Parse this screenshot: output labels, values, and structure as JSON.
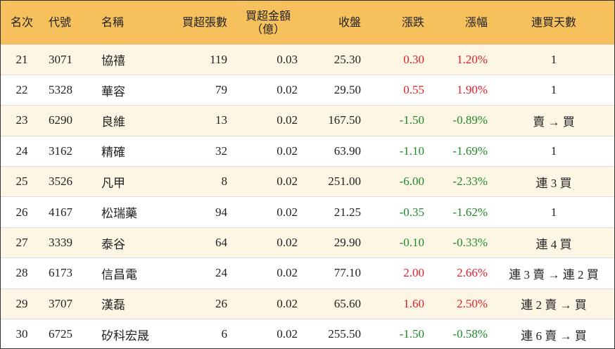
{
  "table": {
    "header": [
      "名次",
      "代號",
      "名稱",
      "買超張數",
      [
        "買超金額",
        "（億）"
      ],
      "收盤",
      "漲跌",
      "漲幅",
      "連買天數"
    ],
    "rows": [
      [
        "21",
        "3071",
        "協禧",
        "119",
        "0.03",
        "25.30",
        "0.30",
        "1.20%",
        "1"
      ],
      [
        "22",
        "5328",
        "華容",
        "79",
        "0.02",
        "29.50",
        "0.55",
        "1.90%",
        "1"
      ],
      [
        "23",
        "6290",
        "良維",
        "13",
        "0.02",
        "167.50",
        "-1.50",
        "-0.89%",
        "賣 → 買"
      ],
      [
        "24",
        "3162",
        "精確",
        "32",
        "0.02",
        "63.90",
        "-1.10",
        "-1.69%",
        "1"
      ],
      [
        "25",
        "3526",
        "凡甲",
        "8",
        "0.02",
        "251.00",
        "-6.00",
        "-2.33%",
        "連 3 買"
      ],
      [
        "26",
        "4167",
        "松瑞藥",
        "94",
        "0.02",
        "21.25",
        "-0.35",
        "-1.62%",
        "1"
      ],
      [
        "27",
        "3339",
        "泰谷",
        "64",
        "0.02",
        "29.90",
        "-0.10",
        "-0.33%",
        "連 4 買"
      ],
      [
        "28",
        "6173",
        "信昌電",
        "24",
        "0.02",
        "77.10",
        "2.00",
        "2.66%",
        "連 3 賣 → 連 2 買"
      ],
      [
        "29",
        "3707",
        "漢磊",
        "26",
        "0.02",
        "65.60",
        "1.60",
        "2.50%",
        "連 2 賣 → 買"
      ],
      [
        "30",
        "6725",
        "矽科宏晟",
        "6",
        "0.02",
        "255.50",
        "-1.50",
        "-0.58%",
        "連 6 賣 → 買"
      ]
    ]
  }
}
